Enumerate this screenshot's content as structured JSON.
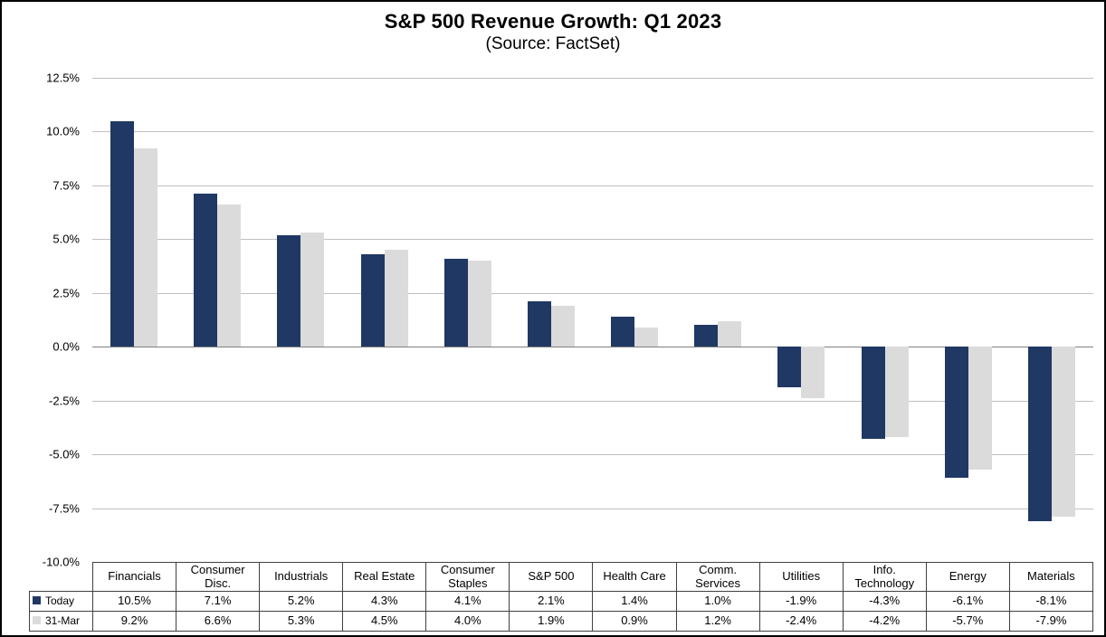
{
  "chart_data": {
    "type": "bar",
    "title": "S&P 500 Revenue Growth: Q1 2023",
    "subtitle": "(Source: FactSet)",
    "categories": [
      "Financials",
      "Consumer Disc.",
      "Industrials",
      "Real Estate",
      "Consumer Staples",
      "S&P 500",
      "Health Care",
      "Comm. Services",
      "Utilities",
      "Info. Technology",
      "Energy",
      "Materials"
    ],
    "series": [
      {
        "name": "Today",
        "color": "#1F3864",
        "values": [
          10.5,
          7.1,
          5.2,
          4.3,
          4.1,
          2.1,
          1.4,
          1.0,
          -1.9,
          -4.3,
          -6.1,
          -8.1
        ]
      },
      {
        "name": "31-Mar",
        "color": "#DBDBDB",
        "values": [
          9.2,
          6.6,
          5.3,
          4.5,
          4.0,
          1.9,
          0.9,
          1.2,
          -2.4,
          -4.2,
          -5.7,
          -7.9
        ]
      }
    ],
    "xlabel": "",
    "ylabel": "",
    "ylim": [
      -10.0,
      12.5
    ],
    "ytick_step": 2.5,
    "ytick_labels": [
      "12.5%",
      "10.0%",
      "7.5%",
      "5.0%",
      "2.5%",
      "0.0%",
      "-2.5%",
      "-5.0%",
      "-7.5%",
      "-10.0%"
    ],
    "grid": true,
    "legend_position": "bottom-table-left",
    "value_decimals": 1,
    "value_suffix": "%"
  }
}
